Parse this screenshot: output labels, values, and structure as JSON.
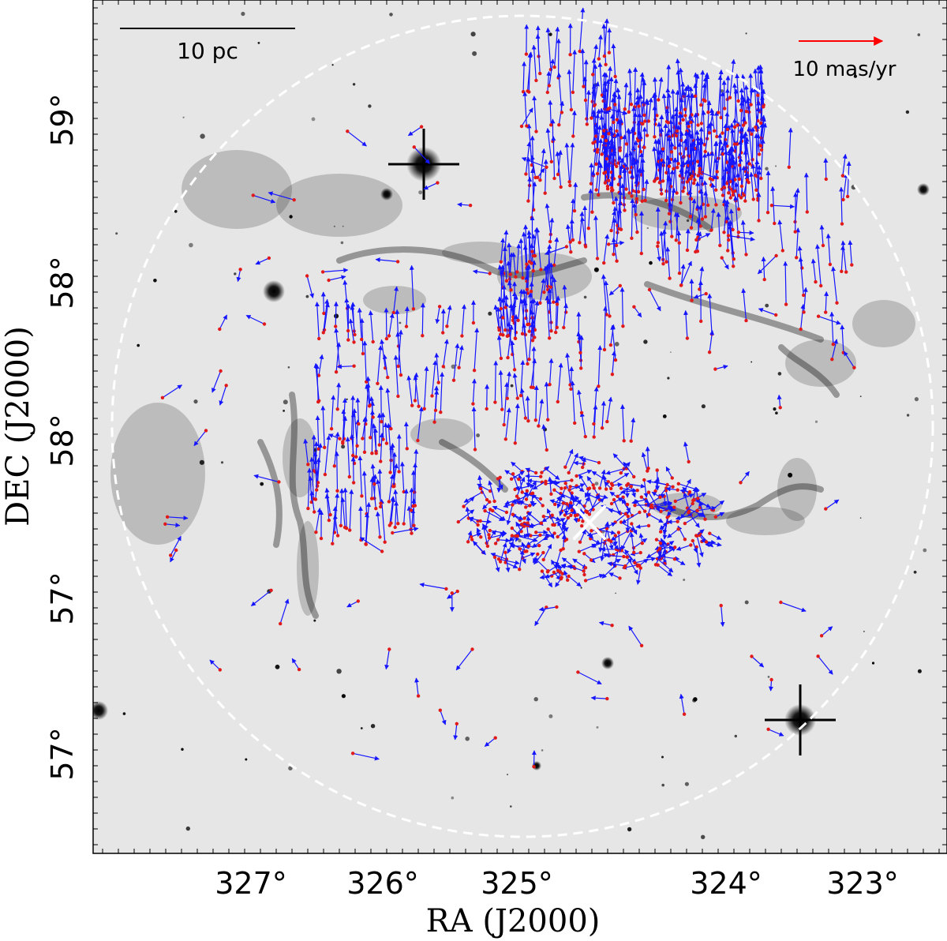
{
  "figure": {
    "x_axis_title": "RA (J2000)",
    "y_axis_title": "DEC (J2000)",
    "x_ticks": [
      "327°",
      "326°",
      "325°",
      "324°",
      "323°"
    ],
    "y_ticks": [
      "59°",
      "58°",
      "58°",
      "57°",
      "57°"
    ],
    "scale_bar_label": "10 pc",
    "vector_key_label": "10 mas/yr",
    "colors": {
      "background_nebula": "#e6e6e6",
      "vector_color": "#1515ff",
      "star_marker_color": "#e11919",
      "key_arrow_color": "#ff0000",
      "boundary_circle": "#ffffff",
      "center_marker": "#ffffff"
    },
    "description_items": [
      "grayscale-nebula-image",
      "proper-motion-vectors",
      "dashed-boundary-circle",
      "cluster-center-cross"
    ]
  }
}
